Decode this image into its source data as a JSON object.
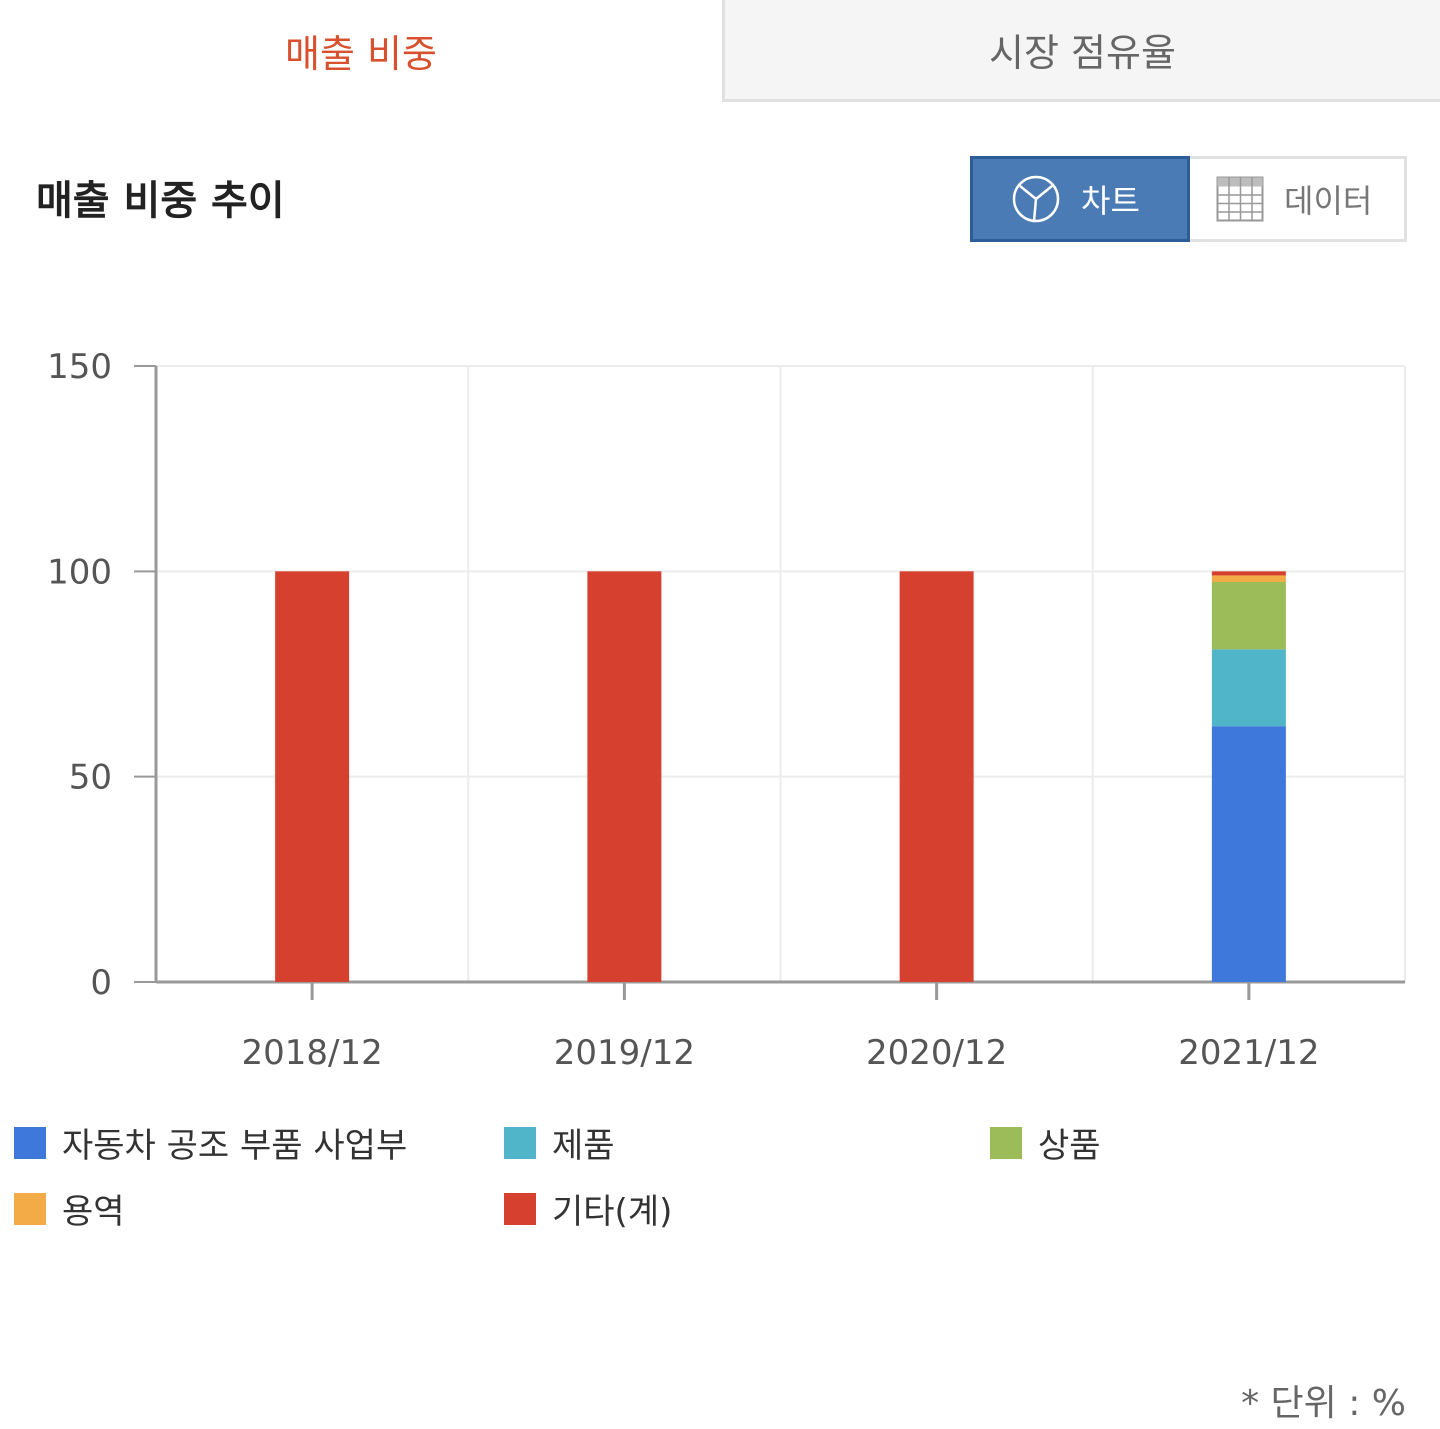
{
  "tabs": [
    {
      "label": "매출 비중",
      "active": true
    },
    {
      "label": "시장 점유율",
      "active": false
    }
  ],
  "section_title": "매출 비중 추이",
  "view_toggle": {
    "chart_label": "차트",
    "chart_icon": "pie-chart-icon",
    "data_label": "데이터",
    "data_icon": "table-grid-icon",
    "selected": "chart"
  },
  "colors": {
    "accent": "#d8502e",
    "toggle_active": "#4a7bb5",
    "series": [
      "#3f78db",
      "#50b5c8",
      "#9bbc59",
      "#f2ab46",
      "#d6402f"
    ]
  },
  "unit_note": "* 단위 : %",
  "chart_data": {
    "type": "bar",
    "stacked": true,
    "categories": [
      "2018/12",
      "2019/12",
      "2020/12",
      "2021/12"
    ],
    "series": [
      {
        "name": "자동차 공조 부품 사업부",
        "values": [
          0,
          0,
          0,
          62.3
        ]
      },
      {
        "name": "제품",
        "values": [
          0,
          0,
          0,
          18.7
        ]
      },
      {
        "name": "상품",
        "values": [
          0,
          0,
          0,
          16.4
        ]
      },
      {
        "name": "용역",
        "values": [
          0,
          0,
          0,
          1.6
        ]
      },
      {
        "name": "기타(계)",
        "values": [
          100,
          100,
          100,
          1.0
        ]
      }
    ],
    "yticks": [
      0,
      50,
      100,
      150
    ],
    "ylim": [
      0,
      150
    ],
    "grid": true,
    "legend_position": "bottom"
  }
}
